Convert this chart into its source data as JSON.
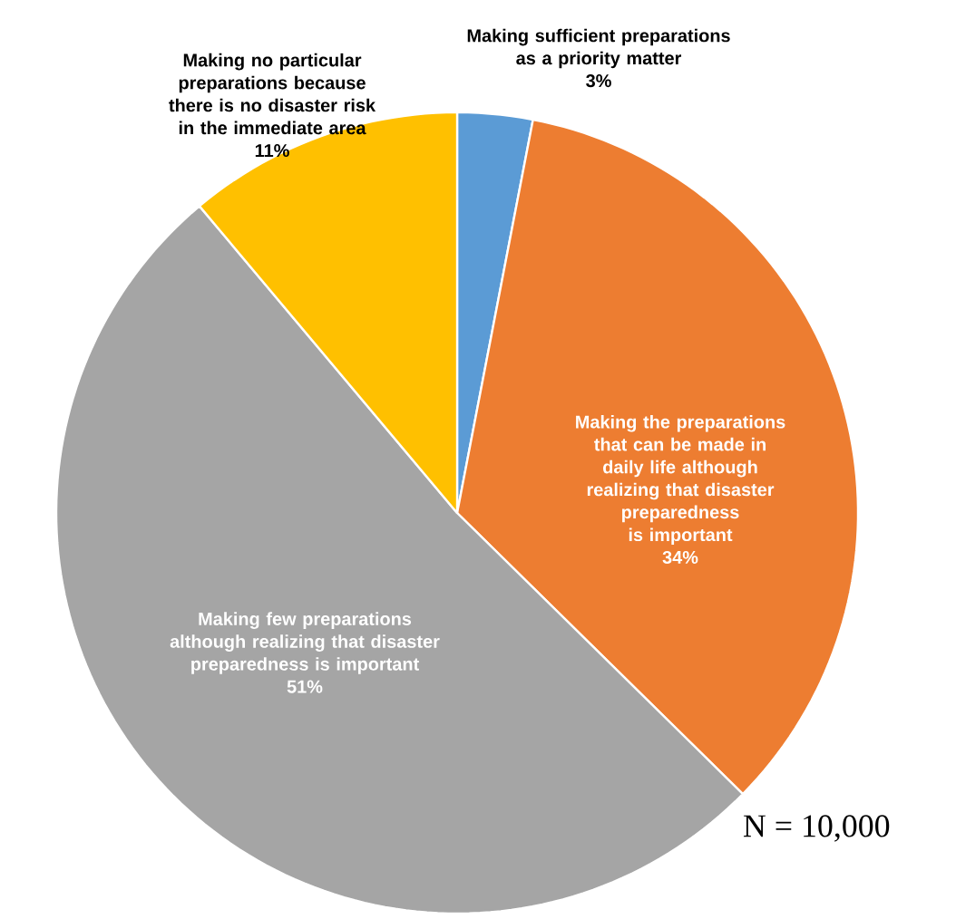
{
  "chart_data": {
    "type": "pie",
    "categories": [
      "Making sufficient preparations as a priority matter",
      "Making the preparations that can be made in daily life although realizing that disaster preparedness is important",
      "Making few preparations although realizing that disaster preparedness is important",
      "Making no particular preparations because there is no disaster risk in the immediate area"
    ],
    "values": [
      3,
      34,
      51,
      11
    ],
    "value_labels": [
      "3%",
      "34%",
      "51%",
      "11%"
    ],
    "colors": [
      "#5b9bd5",
      "#ed7d31",
      "#a5a5a5",
      "#ffc000"
    ],
    "annotations": [
      "N = 10,000"
    ]
  }
}
